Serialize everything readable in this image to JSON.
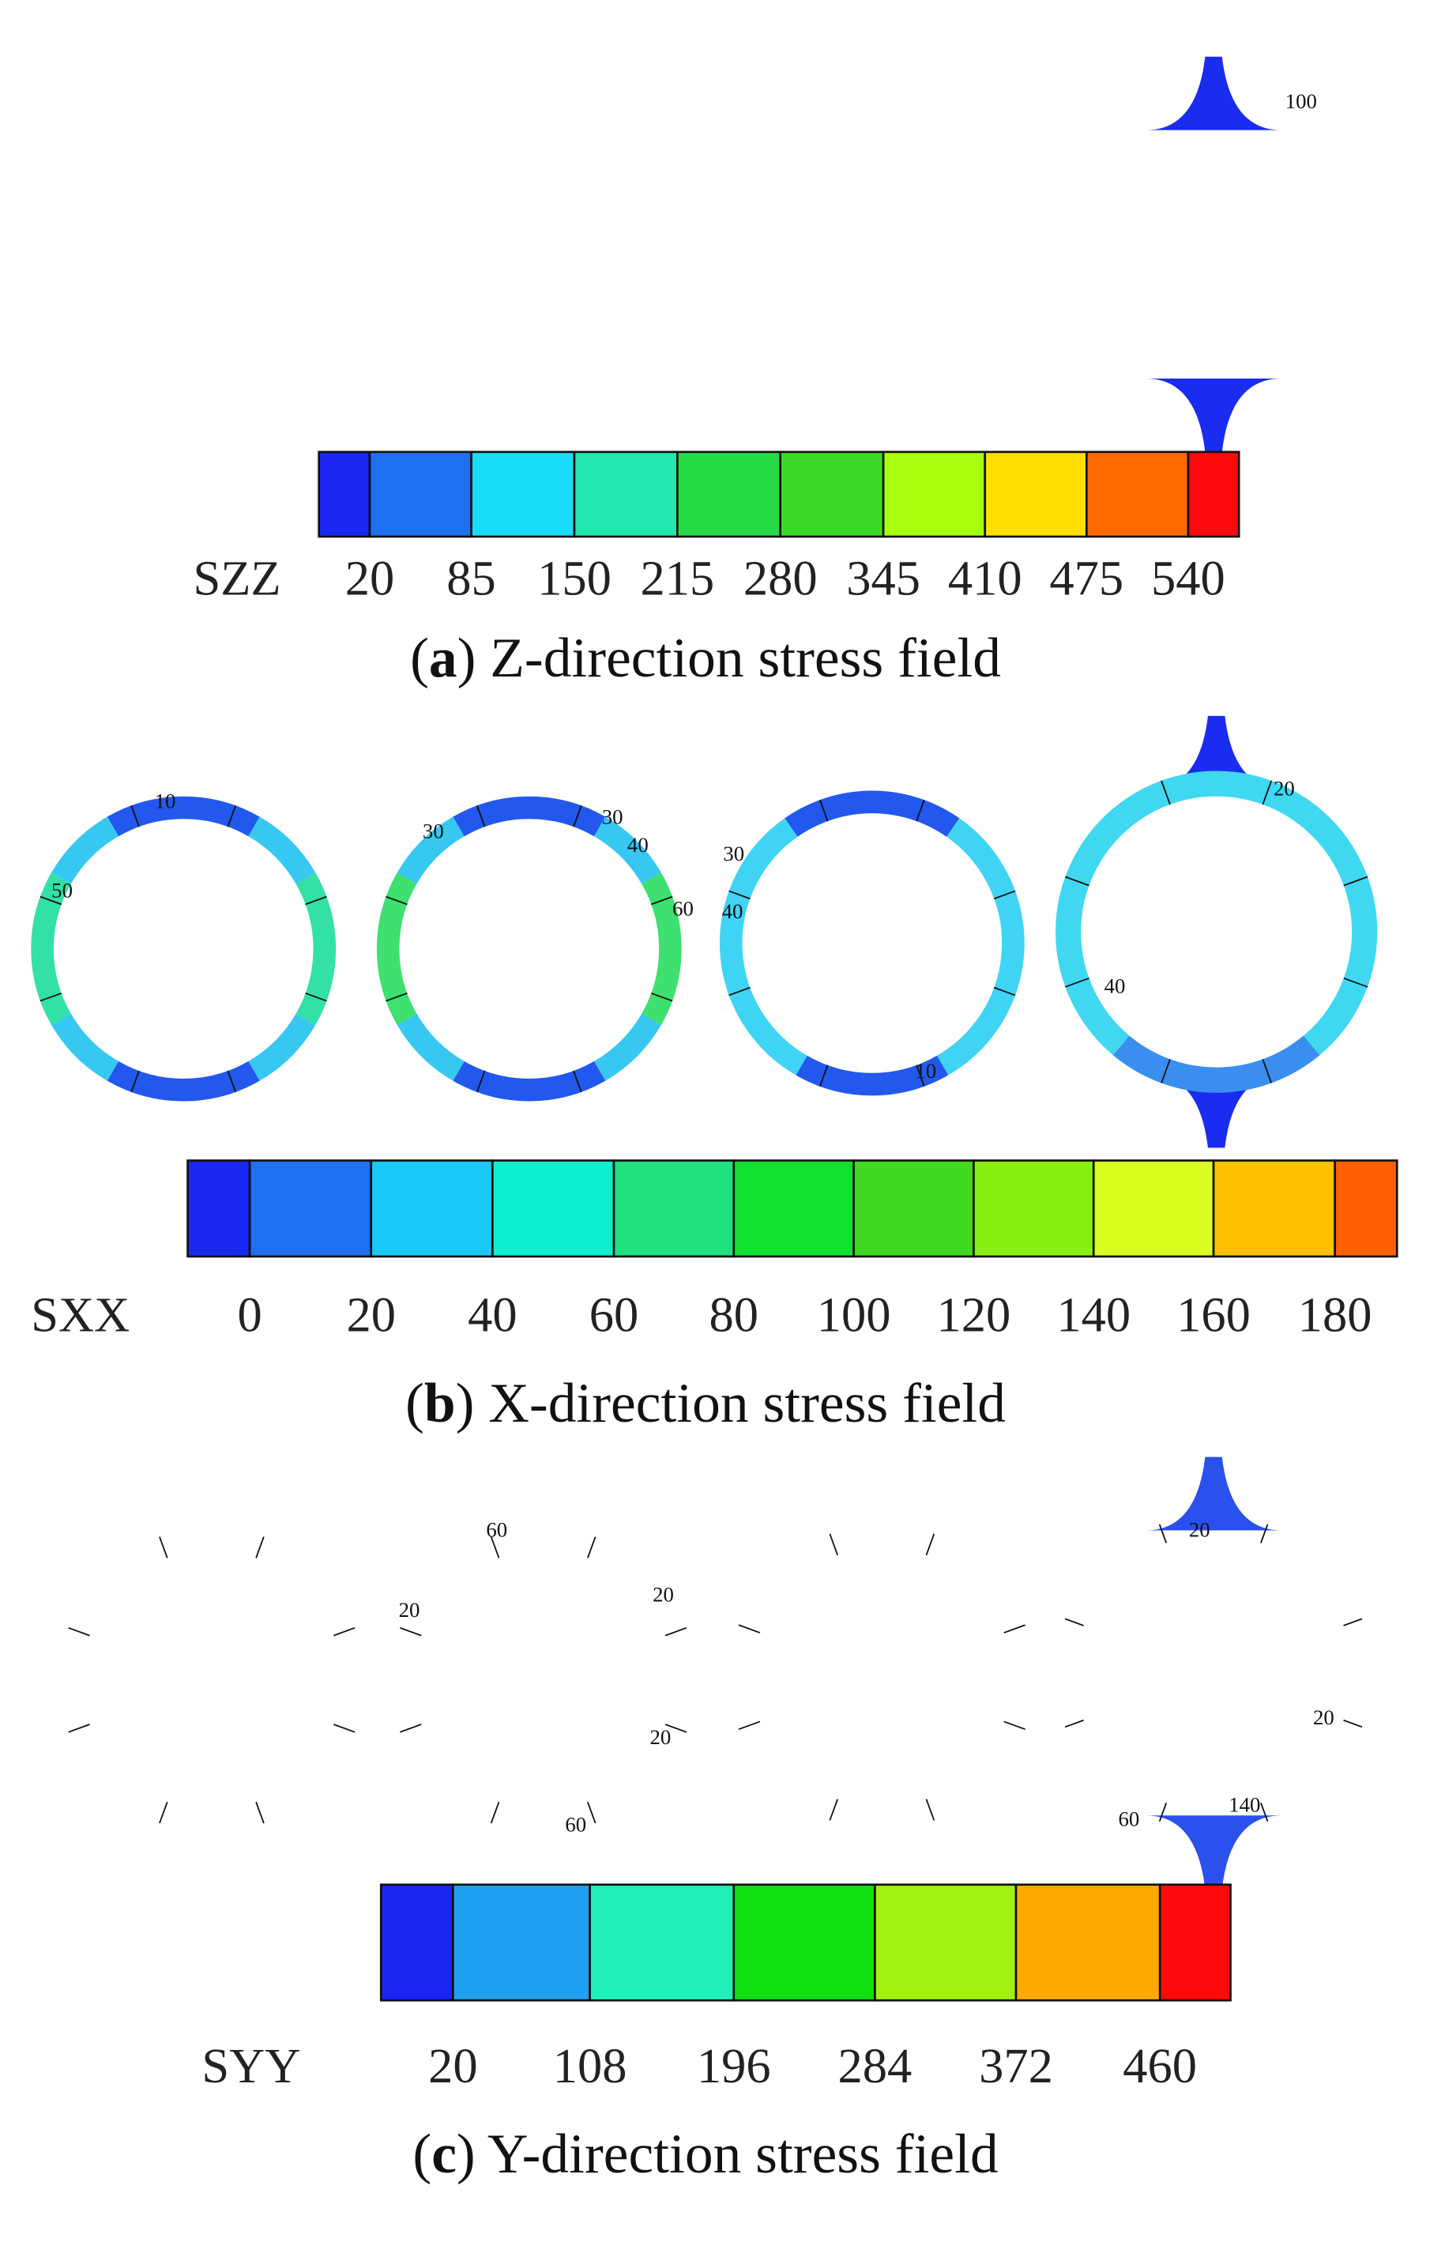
{
  "panels": [
    {
      "caption": [
        "(",
        "a",
        ") Z-direction stress field"
      ],
      "legend": {
        "title": "SZZ",
        "ticks": [
          "20",
          "85",
          "150",
          "215",
          "280",
          "345",
          "410",
          "475",
          "540"
        ],
        "colors": [
          "#1a26f2",
          "#1f70f0",
          "#19dcf8",
          "#22e8b0",
          "#26dc46",
          "#3ed82a",
          "#aaff10",
          "#ffdf00",
          "#ff6a00",
          "#ff0a0a"
        ]
      },
      "contour_labels": [
        "100"
      ]
    },
    {
      "caption": [
        "(",
        "b",
        ") X-direction stress field"
      ],
      "legend": {
        "title": "SXX",
        "ticks": [
          "0",
          "20",
          "40",
          "60",
          "80",
          "100",
          "120",
          "140",
          "160",
          "180"
        ],
        "colors": [
          "#1a26f2",
          "#1f70f0",
          "#19c8f8",
          "#10f0d0",
          "#20e080",
          "#10e030",
          "#40d820",
          "#88f010",
          "#d8ff20",
          "#ffc000",
          "#ff6000",
          "#ff0a0a"
        ]
      },
      "contour_labels": [
        "10",
        "50",
        "30",
        "30",
        "40",
        "60",
        "30",
        "40",
        "10",
        "20",
        "40"
      ]
    },
    {
      "caption": [
        "(",
        "c",
        ") Y-direction stress field"
      ],
      "legend": {
        "title": "SYY",
        "ticks": [
          "20",
          "108",
          "196",
          "284",
          "372",
          "460"
        ],
        "colors": [
          "#1a26f2",
          "#20a0f0",
          "#20f0b8",
          "#10e010",
          "#a0f010",
          "#ffa800",
          "#ff0a0a"
        ]
      },
      "contour_labels": [
        "60",
        "20",
        "20",
        "20",
        "60",
        "20",
        "20",
        "60",
        "140"
      ]
    }
  ]
}
